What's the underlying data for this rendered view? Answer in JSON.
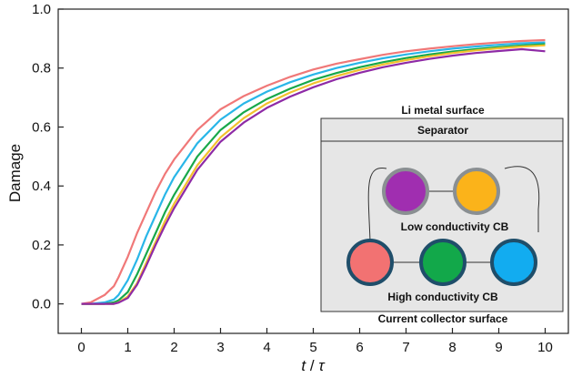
{
  "chart_data": {
    "type": "line",
    "title": "",
    "xlabel": "t / τ",
    "xlabel_parts": {
      "var": "t",
      "sep": " / ",
      "sym": "τ"
    },
    "ylabel": "Damage",
    "xlim": [
      -0.5,
      10.5
    ],
    "ylim": [
      -0.1,
      1.0
    ],
    "xticks": [
      0,
      1,
      2,
      3,
      4,
      5,
      6,
      7,
      8,
      9,
      10
    ],
    "yticks": [
      0.0,
      0.2,
      0.4,
      0.6,
      0.8,
      1.0
    ],
    "ytick_labels": [
      "0.0",
      "0.2",
      "0.4",
      "0.6",
      "0.8",
      "1.0"
    ],
    "grid": false,
    "legend": "none",
    "x": [
      0,
      0.2,
      0.5,
      0.7,
      0.8,
      1.0,
      1.2,
      1.4,
      1.6,
      1.8,
      2.0,
      2.5,
      3.0,
      3.5,
      4.0,
      4.5,
      5.0,
      5.5,
      6.0,
      6.5,
      7.0,
      7.5,
      8.0,
      8.5,
      9.0,
      9.5,
      10.0
    ],
    "series": [
      {
        "color": "#f07878",
        "values": [
          0,
          0.005,
          0.03,
          0.06,
          0.09,
          0.16,
          0.24,
          0.31,
          0.38,
          0.44,
          0.49,
          0.59,
          0.66,
          0.705,
          0.74,
          0.77,
          0.795,
          0.815,
          0.83,
          0.845,
          0.857,
          0.866,
          0.874,
          0.881,
          0.887,
          0.892,
          0.895
        ]
      },
      {
        "color": "#29b6e8",
        "values": [
          0,
          0,
          0.005,
          0.015,
          0.03,
          0.08,
          0.15,
          0.23,
          0.3,
          0.37,
          0.43,
          0.545,
          0.625,
          0.68,
          0.72,
          0.752,
          0.778,
          0.8,
          0.818,
          0.833,
          0.846,
          0.857,
          0.866,
          0.873,
          0.879,
          0.884,
          0.887
        ]
      },
      {
        "color": "#18a84a",
        "values": [
          0,
          0,
          0,
          0.005,
          0.012,
          0.04,
          0.1,
          0.17,
          0.24,
          0.31,
          0.37,
          0.5,
          0.59,
          0.65,
          0.695,
          0.73,
          0.76,
          0.783,
          0.803,
          0.82,
          0.834,
          0.846,
          0.856,
          0.864,
          0.871,
          0.877,
          0.881
        ]
      },
      {
        "color": "#f2c12e",
        "values": [
          0,
          0,
          0,
          0,
          0.005,
          0.025,
          0.07,
          0.14,
          0.21,
          0.28,
          0.34,
          0.47,
          0.565,
          0.63,
          0.68,
          0.717,
          0.748,
          0.773,
          0.794,
          0.812,
          0.827,
          0.84,
          0.851,
          0.86,
          0.867,
          0.873,
          0.877
        ]
      },
      {
        "color": "#8e2aa6",
        "values": [
          0,
          0,
          0,
          0,
          0.004,
          0.02,
          0.065,
          0.13,
          0.2,
          0.265,
          0.325,
          0.455,
          0.55,
          0.615,
          0.665,
          0.703,
          0.735,
          0.762,
          0.784,
          0.803,
          0.818,
          0.831,
          0.842,
          0.851,
          0.858,
          0.864,
          0.857
        ]
      }
    ]
  },
  "inset": {
    "top_label": "Li metal surface",
    "separator_label": "Separator",
    "low_label": "Low conductivity CB",
    "high_label": "High conductivity CB",
    "bottom_label": "Current collector surface",
    "colors": {
      "panel": "#e6e6e6",
      "low_label": "#7f959c",
      "high_label": "#1d4f6b",
      "low_ring": "#8a8f92",
      "high_ring": "#1f4e6a",
      "particle_purple": "#a02eb0",
      "particle_orange": "#fbb31a",
      "particle_red": "#f27272",
      "particle_green": "#12a84a",
      "particle_blue": "#12acf0"
    }
  }
}
